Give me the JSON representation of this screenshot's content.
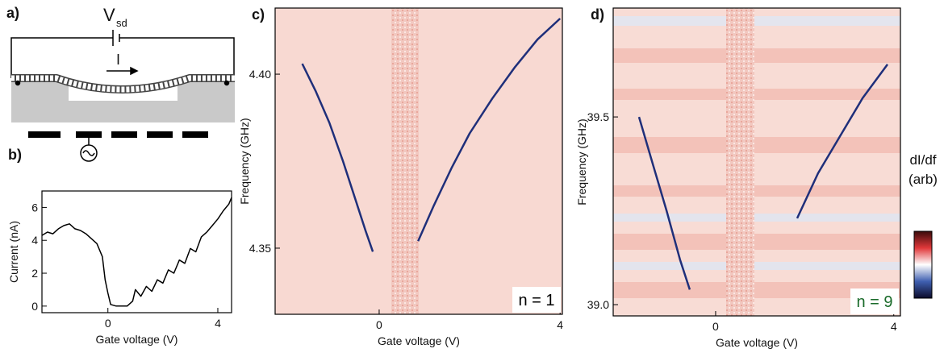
{
  "schematic": {
    "panel_label": "a)",
    "voltage": "V",
    "voltage_subscript": "sd",
    "current": "I"
  },
  "chart_data": [
    {
      "type": "line",
      "panel_label": "b)",
      "x_label": "Gate voltage (V)",
      "y_label": "Current (nA)",
      "xlim": [
        -2.4,
        4.5
      ],
      "xticks": [
        0,
        4
      ],
      "ylim": [
        -0.4,
        7
      ],
      "yticks": [
        0,
        2,
        4,
        6
      ],
      "series": [
        {
          "color": "#000000",
          "x": [
            -2.4,
            -2.2,
            -2.0,
            -1.8,
            -1.6,
            -1.4,
            -1.2,
            -1.0,
            -0.8,
            -0.6,
            -0.4,
            -0.2,
            -0.1,
            0.0,
            0.1,
            0.3,
            0.5,
            0.7,
            0.9,
            1.0,
            1.2,
            1.4,
            1.6,
            1.8,
            2.0,
            2.2,
            2.4,
            2.6,
            2.8,
            3.0,
            3.2,
            3.4,
            3.6,
            3.8,
            4.0,
            4.2,
            4.4,
            4.5
          ],
          "values": [
            4.3,
            4.5,
            4.4,
            4.7,
            4.9,
            5.0,
            4.7,
            4.6,
            4.4,
            4.1,
            3.8,
            3.0,
            1.6,
            0.8,
            0.1,
            0.0,
            0.0,
            0.0,
            0.3,
            1.0,
            0.6,
            1.2,
            0.9,
            1.6,
            1.4,
            2.2,
            2.0,
            2.8,
            2.6,
            3.5,
            3.3,
            4.2,
            4.5,
            4.9,
            5.3,
            5.8,
            6.2,
            6.6
          ]
        }
      ]
    },
    {
      "type": "line",
      "panel_label": "c)",
      "x_label": "Gate voltage (V)",
      "y_label": "Frequency (GHz)",
      "xlim": [
        -2.3,
        4.05
      ],
      "xticks": [
        0,
        4
      ],
      "ylim": [
        4.331,
        4.419
      ],
      "yticks": [
        4.35,
        {
          "value": 4.4,
          "label": "4.40"
        }
      ],
      "annotation": "n = 1",
      "annotation_color": "#000000",
      "series": [
        {
          "color": "#1f2f7a",
          "x": [
            -1.7,
            -1.4,
            -1.1,
            -0.8,
            -0.5,
            -0.3,
            -0.14,
            0.36,
            0.86,
            1.2,
            1.6,
            2.0,
            2.5,
            3.0,
            3.5,
            4.0
          ],
          "values": [
            4.403,
            4.395,
            4.386,
            4.375,
            4.363,
            4.355,
            4.349,
            null,
            4.352,
            4.362,
            4.373,
            4.383,
            4.393,
            4.402,
            4.41,
            4.416
          ]
        }
      ]
    },
    {
      "type": "line",
      "panel_label": "d)",
      "x_label": "Gate voltage (V)",
      "y_label": "Frequency (GHz)",
      "xlim": [
        -2.3,
        4.15
      ],
      "xticks": [
        0,
        4
      ],
      "ylim": [
        38.97,
        39.79
      ],
      "yticks": [
        {
          "value": 39,
          "label": "39.0"
        },
        39.5
      ],
      "annotation": "n = 9",
      "annotation_color": "#1a6b2a",
      "colorbar_label": [
        "dI/df",
        "(arb)"
      ],
      "series": [
        {
          "color": "#1f2f7a",
          "x": [
            -1.72,
            -1.4,
            -1.1,
            -0.8,
            -0.58,
            0.6,
            1.83,
            2.3,
            2.8,
            3.3,
            3.86
          ],
          "values": [
            39.5,
            39.37,
            39.25,
            39.12,
            39.04,
            null,
            39.23,
            39.35,
            39.45,
            39.55,
            39.64
          ]
        }
      ]
    }
  ]
}
